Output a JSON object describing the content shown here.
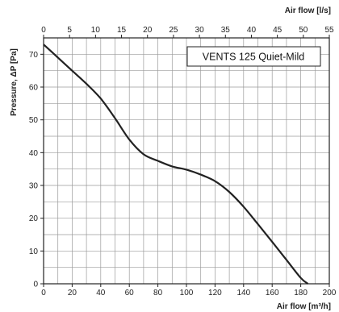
{
  "chart_data": {
    "type": "line",
    "title": "",
    "legend_box_text": "VENTS 125 Quiet-Mild",
    "legend_placement": "top-right",
    "grid": true,
    "xlabel_bottom": "Air flow [m³/h]",
    "xlabel_top": "Air flow [l/s]",
    "ylabel": "Pressure, ΔP [Pa]",
    "xlim_bottom": [
      0,
      200
    ],
    "xlim_top": [
      0,
      55
    ],
    "ylim": [
      0,
      75
    ],
    "x_ticks_bottom": [
      "0",
      "20",
      "40",
      "60",
      "80",
      "100",
      "120",
      "140",
      "160",
      "180",
      "200"
    ],
    "x_ticks_top": [
      "0",
      "5",
      "10",
      "15",
      "20",
      "25",
      "30",
      "35",
      "40",
      "45",
      "50",
      "55"
    ],
    "y_ticks": [
      "0",
      "10",
      "20",
      "30",
      "40",
      "50",
      "60",
      "70"
    ],
    "series": [
      {
        "x": [
          0,
          10,
          20,
          30,
          40,
          50,
          60,
          70,
          80,
          90,
          100,
          110,
          120,
          130,
          140,
          150,
          160,
          170,
          180,
          185
        ],
        "y": [
          73,
          69,
          65,
          61,
          56.5,
          50.5,
          44,
          39.5,
          37.5,
          35.8,
          34.8,
          33.3,
          31.3,
          28,
          23.5,
          18.2,
          12.8,
          7.3,
          1.8,
          0
        ],
        "color": "#222222"
      }
    ]
  }
}
